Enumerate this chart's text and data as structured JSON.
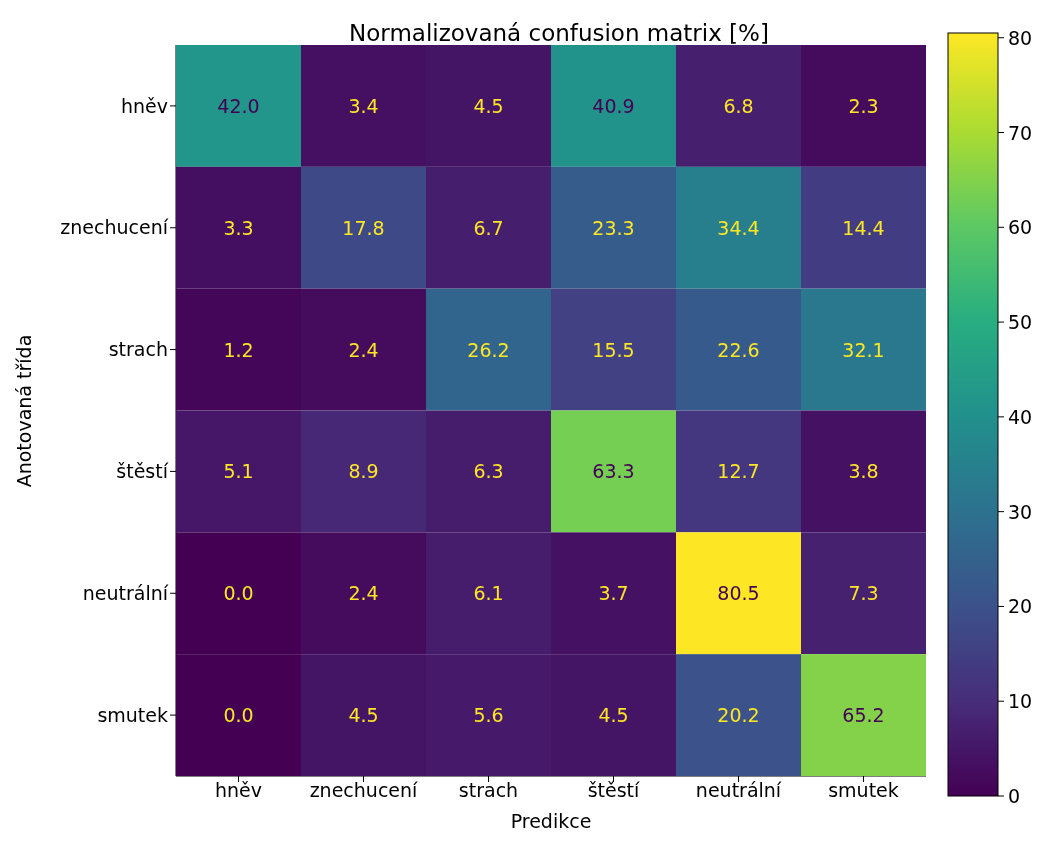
{
  "chart_data": {
    "type": "heatmap",
    "title": "Normalizovaná confusion matrix [%]",
    "xlabel": "Predikce",
    "ylabel": "Anotovaná třída",
    "categories": [
      "hněv",
      "znechucení",
      "strach",
      "štěstí",
      "neutrální",
      "smutek"
    ],
    "y_categories": [
      "hněv",
      "znechucení",
      "strach",
      "štěstí",
      "neutrální",
      "smutek"
    ],
    "cells": [
      [
        42.0,
        3.4,
        4.5,
        40.9,
        6.8,
        2.3
      ],
      [
        3.3,
        17.8,
        6.7,
        23.3,
        34.4,
        14.4
      ],
      [
        1.2,
        2.4,
        26.2,
        15.5,
        22.6,
        32.1
      ],
      [
        5.1,
        8.9,
        6.3,
        63.3,
        12.7,
        3.8
      ],
      [
        0.0,
        2.4,
        6.1,
        3.7,
        80.5,
        7.3
      ],
      [
        0.0,
        4.5,
        5.6,
        4.5,
        20.2,
        65.2
      ]
    ],
    "cell_labels": [
      [
        "42.0",
        "3.4",
        "4.5",
        "40.9",
        "6.8",
        "2.3"
      ],
      [
        "3.3",
        "17.8",
        "6.7",
        "23.3",
        "34.4",
        "14.4"
      ],
      [
        "1.2",
        "2.4",
        "26.2",
        "15.5",
        "22.6",
        "32.1"
      ],
      [
        "5.1",
        "8.9",
        "6.3",
        "63.3",
        "12.7",
        "3.8"
      ],
      [
        "0.0",
        "2.4",
        "6.1",
        "3.7",
        "80.5",
        "7.3"
      ],
      [
        "0.0",
        "4.5",
        "5.6",
        "4.5",
        "20.2",
        "65.2"
      ]
    ],
    "clim": [
      0,
      80.5
    ],
    "cticks": [
      0,
      10,
      20,
      30,
      40,
      50,
      60,
      70,
      80
    ]
  }
}
